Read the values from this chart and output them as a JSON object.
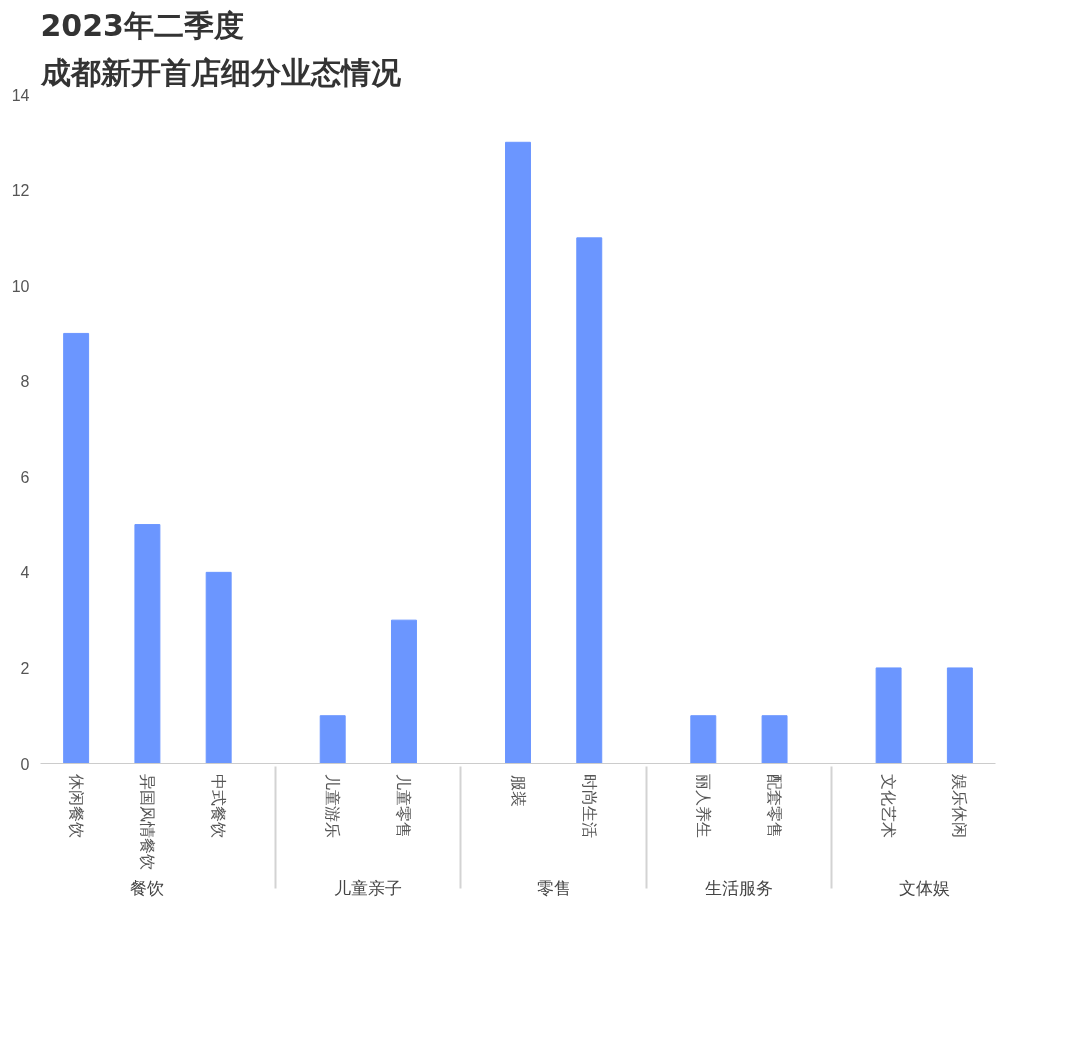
{
  "chart_data": {
    "type": "bar",
    "title": "2023年二季度",
    "subtitle": "成都新开首店细分业态情况",
    "categories": [
      "休闲餐饮",
      "异国风情餐饮",
      "中式餐饮",
      "儿童游乐",
      "儿童零售",
      "服装",
      "时尚生活",
      "丽人养生",
      "配套零售",
      "文化艺术",
      "娱乐休闲"
    ],
    "values": [
      9,
      5,
      4,
      1,
      3,
      13,
      11,
      1,
      1,
      2,
      2
    ],
    "color": "#6b96ff",
    "ylim": [
      0,
      14
    ],
    "yticks": [
      0,
      2,
      4,
      6,
      8,
      10,
      12,
      14
    ],
    "grid": false,
    "annotations": [
      "餐饮",
      "儿童亲子",
      "零售",
      "生活服务",
      "文体娱"
    ]
  }
}
